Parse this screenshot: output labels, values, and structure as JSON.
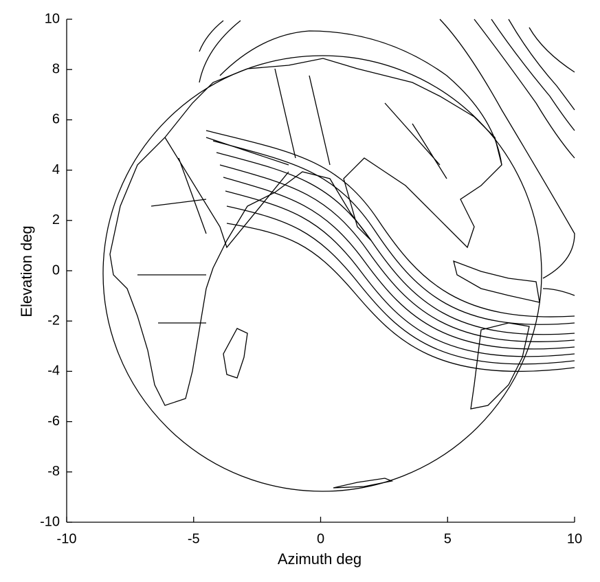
{
  "chart_data": {
    "type": "plot",
    "xlabel": "Azimuth deg",
    "ylabel": "Elevation deg",
    "xlim": [
      -10,
      10
    ],
    "ylim": [
      -10,
      10
    ],
    "xticks": [
      -10,
      -5,
      0,
      5,
      10
    ],
    "yticks": [
      -10,
      -8,
      -6,
      -4,
      -2,
      0,
      2,
      4,
      6,
      8,
      10
    ]
  }
}
